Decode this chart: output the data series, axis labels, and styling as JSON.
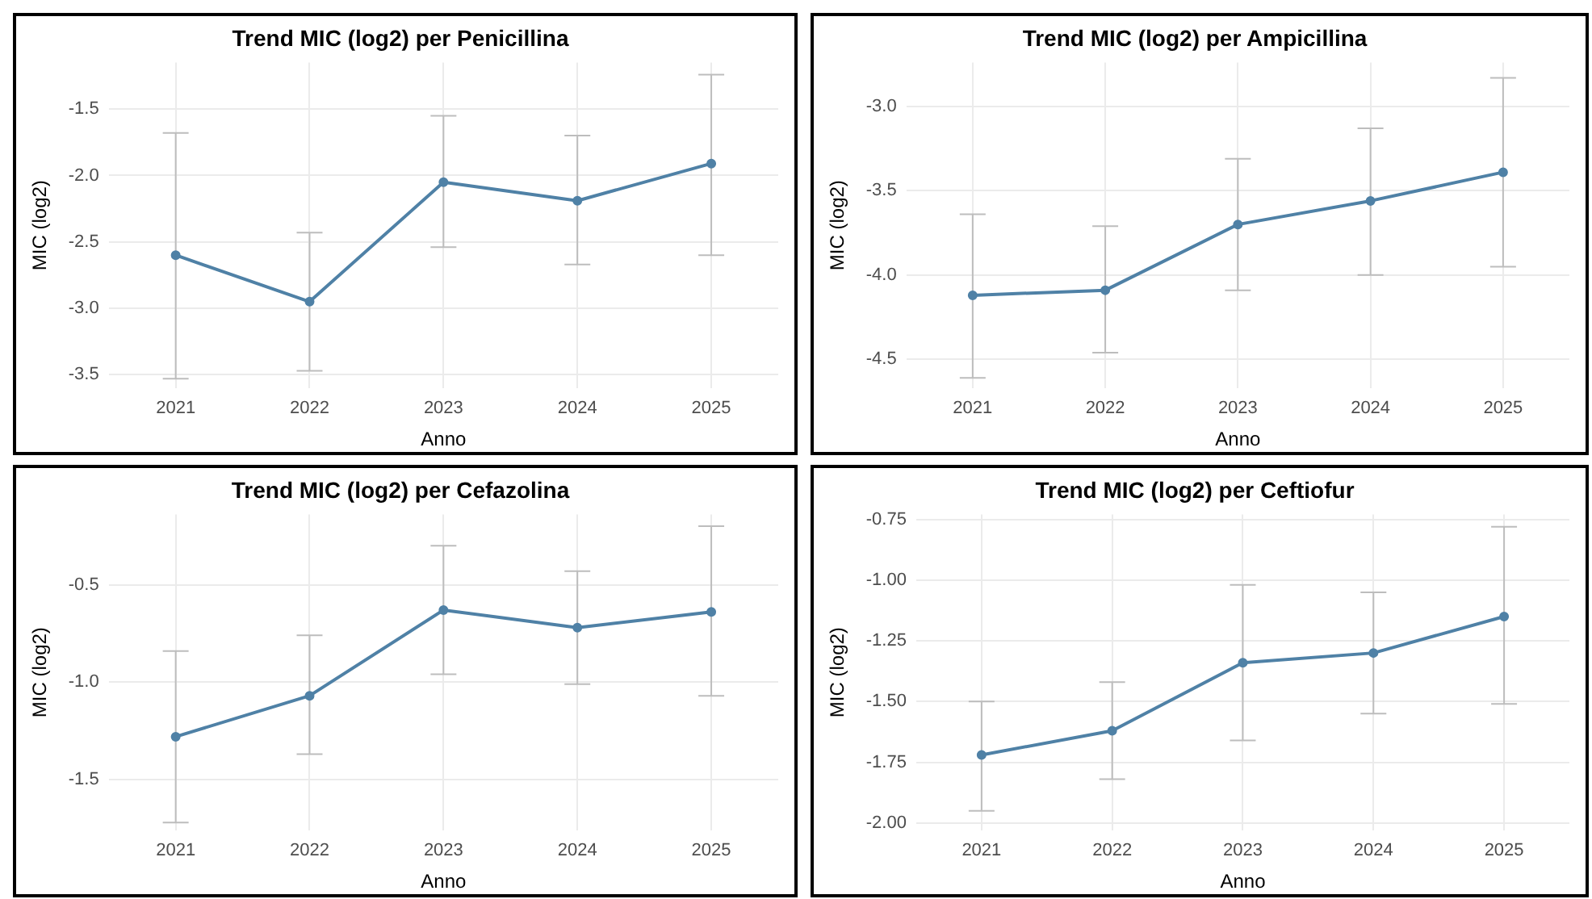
{
  "chart_data": [
    {
      "type": "line",
      "title": "Trend MIC (log2) per Penicillina",
      "xlabel": "Anno",
      "ylabel": "MIC (log2)",
      "categories": [
        "2021",
        "2022",
        "2023",
        "2024",
        "2025"
      ],
      "series": [
        {
          "color": "#4f81a6",
          "values": [
            -2.6,
            -2.95,
            -2.05,
            -2.19,
            -1.91
          ],
          "errors": [
            [
              -3.53,
              -1.68
            ],
            [
              -3.47,
              -2.43
            ],
            [
              -2.54,
              -1.55
            ],
            [
              -2.67,
              -1.7
            ],
            [
              -2.6,
              -1.24
            ]
          ]
        }
      ],
      "ylim": [
        -3.6,
        -1.15
      ],
      "yticks": [
        -3.5,
        {
          "value": -3,
          "label": "-3.0"
        },
        -2.5,
        {
          "value": -2,
          "label": "-2.0"
        },
        -1.5
      ],
      "grid": true,
      "marker": "circle",
      "legend": false
    },
    {
      "type": "line",
      "title": "Trend MIC (log2) per Ampicillina",
      "xlabel": "Anno",
      "ylabel": "MIC (log2)",
      "categories": [
        "2021",
        "2022",
        "2023",
        "2024",
        "2025"
      ],
      "series": [
        {
          "color": "#4f81a6",
          "values": [
            -4.12,
            -4.09,
            -3.7,
            -3.56,
            -3.39
          ],
          "errors": [
            [
              -4.61,
              -3.64
            ],
            [
              -4.46,
              -3.71
            ],
            [
              -4.09,
              -3.31
            ],
            [
              -4,
              -3.13
            ],
            [
              -3.95,
              -2.83
            ]
          ]
        }
      ],
      "ylim": [
        -4.67,
        -2.74
      ],
      "yticks": [
        -4.5,
        {
          "value": -4,
          "label": "-4.0"
        },
        -3.5,
        {
          "value": -3,
          "label": "-3.0"
        }
      ],
      "grid": true,
      "marker": "circle",
      "legend": false
    },
    {
      "type": "line",
      "title": "Trend MIC (log2) per Cefazolina",
      "xlabel": "Anno",
      "ylabel": "MIC (log2)",
      "categories": [
        "2021",
        "2022",
        "2023",
        "2024",
        "2025"
      ],
      "series": [
        {
          "color": "#4f81a6",
          "values": [
            -1.28,
            -1.07,
            -0.63,
            -0.72,
            -0.64
          ],
          "errors": [
            [
              -1.72,
              -0.84
            ],
            [
              -1.37,
              -0.76
            ],
            [
              -0.96,
              -0.3
            ],
            [
              -1.01,
              -0.43
            ],
            [
              -1.07,
              -0.2
            ]
          ]
        }
      ],
      "ylim": [
        -1.76,
        -0.14
      ],
      "yticks": [
        -1.5,
        {
          "value": -1,
          "label": "-1.0"
        },
        -0.5
      ],
      "grid": true,
      "marker": "circle",
      "legend": false
    },
    {
      "type": "line",
      "title": "Trend MIC (log2) per Ceftiofur",
      "xlabel": "Anno",
      "ylabel": "MIC (log2)",
      "categories": [
        "2021",
        "2022",
        "2023",
        "2024",
        "2025"
      ],
      "series": [
        {
          "color": "#4f81a6",
          "values": [
            -1.72,
            -1.62,
            -1.34,
            -1.3,
            -1.15
          ],
          "errors": [
            [
              -1.95,
              -1.5
            ],
            [
              -1.82,
              -1.42
            ],
            [
              -1.66,
              -1.02
            ],
            [
              -1.55,
              -1.05
            ],
            [
              -1.51,
              -0.78
            ]
          ]
        }
      ],
      "ylim": [
        -2.03,
        -0.73
      ],
      "yticks": [
        {
          "value": -2,
          "label": "-2.00"
        },
        -1.75,
        {
          "value": -1.5,
          "label": "-1.50"
        },
        -1.25,
        {
          "value": -1,
          "label": "-1.00"
        },
        -0.75
      ],
      "grid": true,
      "marker": "circle",
      "legend": false
    }
  ]
}
